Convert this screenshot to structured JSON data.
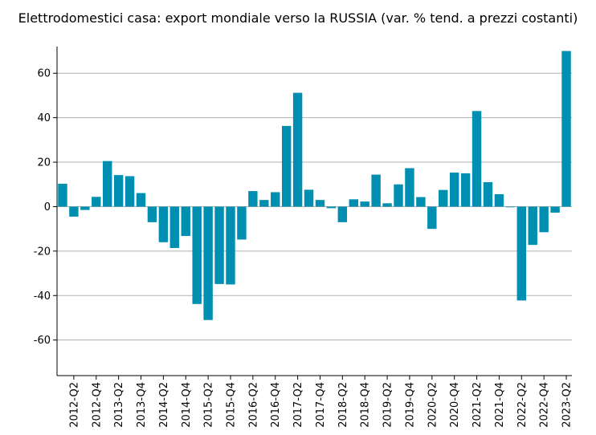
{
  "chart_data": {
    "type": "bar",
    "title": "Elettrodomestici casa: export mondiale verso la RUSSIA (var. % tend. a prezzi costanti)",
    "xlabel": "",
    "ylabel": "",
    "ylim": [
      -76,
      72
    ],
    "yticks": [
      -60,
      -40,
      -20,
      0,
      20,
      40,
      60
    ],
    "grid": true,
    "legend": "none",
    "bar_color": "#008fb0",
    "categories": [
      "2012-Q1",
      "2012-Q2",
      "2012-Q3",
      "2012-Q4",
      "2013-Q1",
      "2013-Q2",
      "2013-Q3",
      "2013-Q4",
      "2014-Q1",
      "2014-Q2",
      "2014-Q3",
      "2014-Q4",
      "2015-Q1",
      "2015-Q2",
      "2015-Q3",
      "2015-Q4",
      "2016-Q1",
      "2016-Q2",
      "2016-Q3",
      "2016-Q4",
      "2017-Q1",
      "2017-Q2",
      "2017-Q3",
      "2017-Q4",
      "2018-Q1",
      "2018-Q2",
      "2018-Q3",
      "2018-Q4",
      "2019-Q1",
      "2019-Q2",
      "2019-Q3",
      "2019-Q4",
      "2020-Q1",
      "2020-Q2",
      "2020-Q3",
      "2020-Q4",
      "2021-Q1",
      "2021-Q2",
      "2021-Q3",
      "2021-Q4",
      "2022-Q1",
      "2022-Q2",
      "2022-Q3",
      "2022-Q4",
      "2023-Q1",
      "2023-Q2"
    ],
    "tick_labels": [
      "2012-Q2",
      "2012-Q4",
      "2013-Q2",
      "2013-Q4",
      "2014-Q2",
      "2014-Q4",
      "2015-Q2",
      "2015-Q4",
      "2016-Q2",
      "2016-Q4",
      "2017-Q2",
      "2017-Q4",
      "2018-Q2",
      "2018-Q4",
      "2019-Q2",
      "2019-Q4",
      "2020-Q2",
      "2020-Q4",
      "2021-Q2",
      "2021-Q4",
      "2022-Q2",
      "2022-Q4",
      "2023-Q2"
    ],
    "values": [
      10.3,
      -4.5,
      -1.5,
      4.4,
      20.5,
      14.2,
      13.7,
      6.1,
      -7.0,
      -16.0,
      -18.6,
      -13.2,
      -43.8,
      -51.0,
      -34.8,
      -35.0,
      -14.8,
      7.0,
      3.0,
      6.5,
      36.3,
      51.2,
      7.6,
      3.0,
      -0.7,
      -7.0,
      3.3,
      2.3,
      14.4,
      1.5,
      10.0,
      17.3,
      4.3,
      -10.0,
      7.5,
      15.3,
      15.0,
      43.0,
      11.0,
      5.6,
      -0.3,
      -42.2,
      -17.2,
      -11.5,
      -2.7,
      70.0
    ]
  }
}
